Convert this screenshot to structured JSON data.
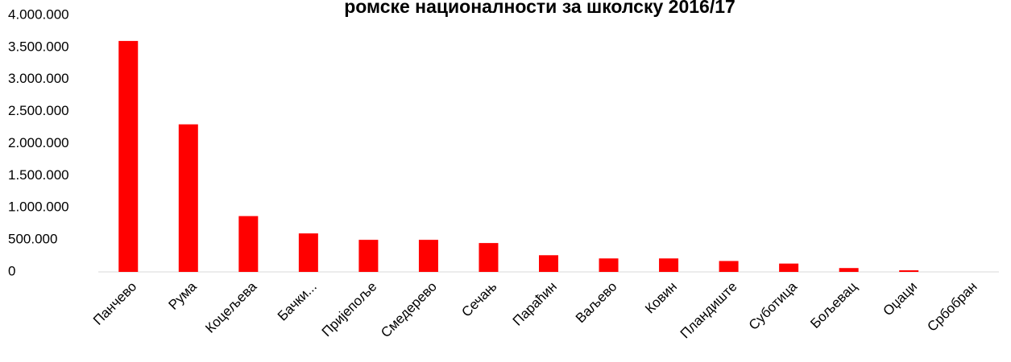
{
  "chart_data": {
    "type": "bar",
    "title": "ромске националности за школску 2016/17",
    "categories": [
      "Панчево",
      "Рума",
      "Коцељева",
      "Бачки...",
      "Пријепоље",
      "Смедерево",
      "Сечањ",
      "Параћин",
      "Ваљево",
      "Ковин",
      "Пландиште",
      "Суботица",
      "Бољевац",
      "Оџаци",
      "Србобран"
    ],
    "values": [
      3600000,
      2300000,
      870000,
      600000,
      500000,
      500000,
      450000,
      260000,
      210000,
      210000,
      170000,
      130000,
      60000,
      25000,
      0
    ],
    "color": "#ff0000",
    "ylim": [
      0,
      4000000
    ],
    "yticks": [
      0,
      {
        "value": 500000,
        "label": "500.000"
      },
      {
        "value": 1000000,
        "label": "1.000.000"
      },
      {
        "value": 1500000,
        "label": "1.500.000"
      },
      {
        "value": 2000000,
        "label": "2.000.000"
      },
      {
        "value": 2500000,
        "label": "2.500.000"
      },
      {
        "value": 3000000,
        "label": "3.000.000"
      },
      {
        "value": 3500000,
        "label": "3.500.000"
      },
      {
        "value": 4000000,
        "label": "4.000.000"
      }
    ],
    "grid": false
  }
}
